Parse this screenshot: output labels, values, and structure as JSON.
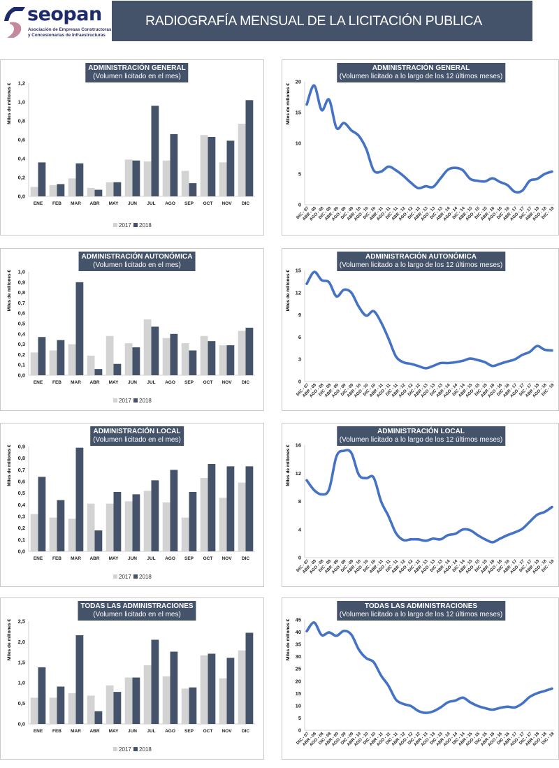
{
  "header": {
    "logo_word": "seopan",
    "logo_sub1": "Asociación de Empresas Constructoras",
    "logo_sub2": "y Concesionarias de Infraestructuras",
    "title": "RADIOGRAFÍA MENSUAL DE LA LICITACIÓN PUBLICA"
  },
  "colors": {
    "header": "#45536a",
    "bar2017": "#d3d3d3",
    "bar2018": "#44536a",
    "line": "#4472c4"
  },
  "chart_data": [
    {
      "type": "bar",
      "title": "ADMINISTRACIÓN GENERAL",
      "subtitle": "(Volumen licitado en el mes)",
      "ylabel": "Miles de millones €",
      "ylim": [
        0,
        1.2
      ],
      "yticks": [
        "0,0",
        "0,2",
        "0,4",
        "0,6",
        "0,8",
        "1,0",
        "1,2"
      ],
      "categories": [
        "ENE",
        "FEB",
        "MAR",
        "ABR",
        "MAY",
        "JUN",
        "JUL",
        "AGO",
        "SEP",
        "OCT",
        "NOV",
        "DIC"
      ],
      "series": [
        {
          "name": "2017",
          "values": [
            0.1,
            0.12,
            0.19,
            0.09,
            0.15,
            0.39,
            0.37,
            0.38,
            0.27,
            0.65,
            0.36,
            0.77
          ]
        },
        {
          "name": "2018",
          "values": [
            0.36,
            0.13,
            0.35,
            0.07,
            0.15,
            0.38,
            0.96,
            0.66,
            0.14,
            0.63,
            0.59,
            1.02
          ]
        }
      ],
      "legend": "bottom"
    },
    {
      "type": "line",
      "title": "ADMINISTRACIÓN GENERAL",
      "subtitle": "(Volumen licitado a lo largo de los 12 últimos meses)",
      "ylabel": "Miles de millones €",
      "ylim": [
        0,
        20
      ],
      "yticks": [
        "0",
        "5",
        "10",
        "15",
        "20"
      ],
      "categories": [
        "DIC - 07",
        "ABR - 08",
        "AGO - 08",
        "DIC - 08",
        "ABR - 09",
        "AGO - 09",
        "DIC - 09",
        "ABR - 10",
        "AGO - 10",
        "DIC - 10",
        "ABR - 11",
        "AGO - 11",
        "DIC - 11",
        "ABR - 12",
        "AGO - 12",
        "DIC - 12",
        "ABR - 13",
        "AGO - 13",
        "DIC - 13",
        "ABR - 14",
        "AGO - 14",
        "DIC - 14",
        "ABR - 15",
        "AGO - 15",
        "DIC - 15",
        "ABR - 16",
        "AGO - 16",
        "DIC - 16",
        "ABR - 17",
        "AGO - 17",
        "DIC - 17",
        "ABR - 18",
        "AGO - 18",
        "DIC - 18"
      ],
      "values": [
        16.3,
        19.4,
        15.4,
        17.1,
        12.5,
        13.3,
        12.1,
        11.2,
        9.1,
        5.6,
        5.4,
        6.2,
        5.6,
        4.7,
        3.6,
        2.7,
        3.0,
        2.9,
        4.3,
        5.7,
        6.0,
        5.6,
        4.2,
        3.9,
        3.8,
        4.3,
        3.7,
        3.2,
        2.1,
        2.3,
        3.9,
        4.2,
        5.0,
        5.4
      ]
    },
    {
      "type": "bar",
      "title": "ADMINISTRACIÓN AUTONÓMICA",
      "subtitle": "(Volumen licitado en el mes)",
      "ylabel": "Miles de millones €",
      "ylim": [
        0,
        1.0
      ],
      "yticks": [
        "0,0",
        "0,1",
        "0,2",
        "0,3",
        "0,4",
        "0,5",
        "0,6",
        "0,7",
        "0,8",
        "0,9",
        "1,0"
      ],
      "categories": [
        "ENE",
        "FEB",
        "MAR",
        "ABR",
        "MAY",
        "JUN",
        "JUL",
        "AGO",
        "SEP",
        "OCT",
        "NOV",
        "DIC"
      ],
      "series": [
        {
          "name": "2017",
          "values": [
            0.22,
            0.24,
            0.3,
            0.19,
            0.38,
            0.31,
            0.54,
            0.36,
            0.31,
            0.38,
            0.29,
            0.43
          ]
        },
        {
          "name": "2018",
          "values": [
            0.37,
            0.34,
            0.9,
            0.06,
            0.11,
            0.27,
            0.47,
            0.4,
            0.24,
            0.33,
            0.29,
            0.46
          ]
        }
      ],
      "legend": "bottom"
    },
    {
      "type": "line",
      "title": "ADMINISTRACIÓN AUTONÓMICA",
      "subtitle": "(Volumen licitado a lo largo de los 12 últimos meses)",
      "ylabel": "Miles de millones €",
      "ylim": [
        0,
        15
      ],
      "yticks": [
        "0",
        "3",
        "6",
        "9",
        "12",
        "15"
      ],
      "categories": [
        "DIC - 07",
        "ABR - 08",
        "AGO - 08",
        "DIC - 08",
        "ABR - 09",
        "AGO - 09",
        "DIC - 09",
        "ABR - 10",
        "AGO - 10",
        "DIC - 10",
        "ABR - 11",
        "AGO - 11",
        "DIC - 11",
        "ABR - 12",
        "AGO - 12",
        "DIC - 12",
        "ABR - 13",
        "AGO - 13",
        "DIC - 13",
        "ABR - 14",
        "AGO - 14",
        "DIC - 14",
        "ABR - 15",
        "AGO - 15",
        "DIC - 15",
        "ABR - 16",
        "AGO - 16",
        "DIC - 16",
        "ABR - 17",
        "AGO - 17",
        "DIC - 17",
        "ABR - 18",
        "AGO - 18",
        "DIC - 18"
      ],
      "values": [
        13.2,
        14.8,
        13.7,
        13.4,
        11.5,
        12.4,
        12.0,
        10.1,
        8.9,
        9.5,
        8.0,
        5.8,
        3.4,
        2.6,
        2.4,
        2.1,
        1.8,
        2.1,
        2.5,
        2.5,
        2.6,
        2.8,
        3.1,
        2.9,
        2.6,
        2.1,
        2.4,
        2.7,
        3.0,
        3.6,
        4.0,
        4.8,
        4.3,
        4.2
      ]
    },
    {
      "type": "bar",
      "title": "ADMINISTRACIÓN LOCAL",
      "subtitle": "(Volumen licitado en el mes)",
      "ylabel": "Miles de millones €",
      "ylim": [
        0,
        0.9
      ],
      "yticks": [
        "0,0",
        "0,1",
        "0,2",
        "0,3",
        "0,4",
        "0,5",
        "0,6",
        "0,7",
        "0,8",
        "0,9"
      ],
      "categories": [
        "ENE",
        "FEB",
        "MAR",
        "ABR",
        "MAY",
        "JUN",
        "JUL",
        "AGO",
        "SEP",
        "OCT",
        "NOV",
        "DIC"
      ],
      "series": [
        {
          "name": "2017",
          "values": [
            0.32,
            0.29,
            0.28,
            0.41,
            0.41,
            0.43,
            0.52,
            0.42,
            0.29,
            0.63,
            0.46,
            0.59
          ]
        },
        {
          "name": "2018",
          "values": [
            0.64,
            0.44,
            0.89,
            0.18,
            0.51,
            0.49,
            0.61,
            0.7,
            0.51,
            0.75,
            0.73,
            0.73
          ]
        }
      ],
      "legend": "bottom"
    },
    {
      "type": "line",
      "title": "ADMINISTRACIÓN LOCAL",
      "subtitle": "(Volumen licitado a lo largo de los 12 últimos meses)",
      "ylabel": "Miles de millones €",
      "ylim": [
        0,
        16
      ],
      "yticks": [
        "0",
        "4",
        "8",
        "12",
        "16"
      ],
      "categories": [
        "DIC - 07",
        "ABR - 08",
        "AGO - 08",
        "DIC - 08",
        "ABR - 09",
        "AGO - 09",
        "DIC - 09",
        "ABR - 10",
        "AGO - 10",
        "DIC - 10",
        "ABR - 11",
        "AGO - 11",
        "DIC - 11",
        "ABR - 12",
        "AGO - 12",
        "DIC - 12",
        "ABR - 13",
        "AGO - 13",
        "DIC - 13",
        "ABR - 14",
        "AGO - 14",
        "DIC - 14",
        "ABR - 15",
        "AGO - 15",
        "DIC - 15",
        "ABR - 16",
        "AGO - 16",
        "DIC - 16",
        "ABR - 17",
        "AGO - 17",
        "DIC - 17",
        "ABR - 18",
        "AGO - 18",
        "DIC - 18"
      ],
      "values": [
        11.0,
        9.6,
        9.0,
        9.7,
        14.4,
        15.2,
        14.9,
        11.8,
        11.3,
        11.4,
        8.0,
        5.9,
        3.5,
        2.5,
        2.6,
        2.6,
        2.4,
        2.7,
        2.6,
        3.2,
        3.4,
        4.0,
        3.9,
        3.2,
        2.6,
        2.2,
        2.7,
        3.2,
        3.6,
        4.1,
        5.1,
        6.1,
        6.5,
        7.2
      ]
    },
    {
      "type": "bar",
      "title": "TODAS  LAS ADMINISTRACIONES",
      "subtitle": "(Volumen licitado en el mes)",
      "ylabel": "Miles de millones €",
      "ylim": [
        0,
        2.5
      ],
      "yticks": [
        "0,0",
        "0,5",
        "1,0",
        "1,5",
        "2,0",
        "2,5"
      ],
      "categories": [
        "ENE",
        "FEB",
        "MAR",
        "ABR",
        "MAY",
        "JUN",
        "JUL",
        "AGO",
        "SEP",
        "OCT",
        "NOV",
        "DIC"
      ],
      "series": [
        {
          "name": "2017",
          "values": [
            0.64,
            0.64,
            0.75,
            0.69,
            0.94,
            1.13,
            1.43,
            1.16,
            0.86,
            1.67,
            1.11,
            1.79
          ]
        },
        {
          "name": "2018",
          "values": [
            1.38,
            0.91,
            2.16,
            0.31,
            0.78,
            1.13,
            2.05,
            1.76,
            0.89,
            1.71,
            1.61,
            2.22
          ]
        }
      ],
      "legend": "bottom"
    },
    {
      "type": "line",
      "title": "TODAS LAS ADMINISTRACIONES",
      "subtitle": "(Volumen licitado a lo largo de los 12 últimos meses)",
      "ylabel": "Miles de millones €",
      "ylim": [
        0,
        45
      ],
      "yticks": [
        "0",
        "5",
        "10",
        "15",
        "20",
        "25",
        "30",
        "35",
        "40",
        "45"
      ],
      "categories": [
        "DIC - 07",
        "ABR - 08",
        "AGO - 08",
        "DIC - 08",
        "ABR - 09",
        "AGO - 09",
        "DIC - 09",
        "ABR - 10",
        "AGO - 10",
        "DIC - 10",
        "ABR - 11",
        "AGO - 11",
        "DIC - 11",
        "ABR - 12",
        "AGO - 12",
        "DIC - 12",
        "ABR - 13",
        "AGO - 13",
        "DIC - 13",
        "ABR - 14",
        "AGO - 14",
        "DIC - 14",
        "ABR - 15",
        "AGO - 15",
        "DIC - 15",
        "ABR - 16",
        "AGO - 16",
        "DIC - 16",
        "ABR - 17",
        "AGO - 17",
        "DIC - 17",
        "ABR - 18",
        "AGO - 18",
        "DIC - 18"
      ],
      "values": [
        40.4,
        43.9,
        38.8,
        39.9,
        38.5,
        40.5,
        39.0,
        32.9,
        29.4,
        27.8,
        22.3,
        18.1,
        12.5,
        10.7,
        9.9,
        7.9,
        7.1,
        7.7,
        9.3,
        11.4,
        12.1,
        13.3,
        11.4,
        9.9,
        9.0,
        8.4,
        9.1,
        9.6,
        9.3,
        10.9,
        13.6,
        15.1,
        16.0,
        17.0
      ]
    }
  ]
}
